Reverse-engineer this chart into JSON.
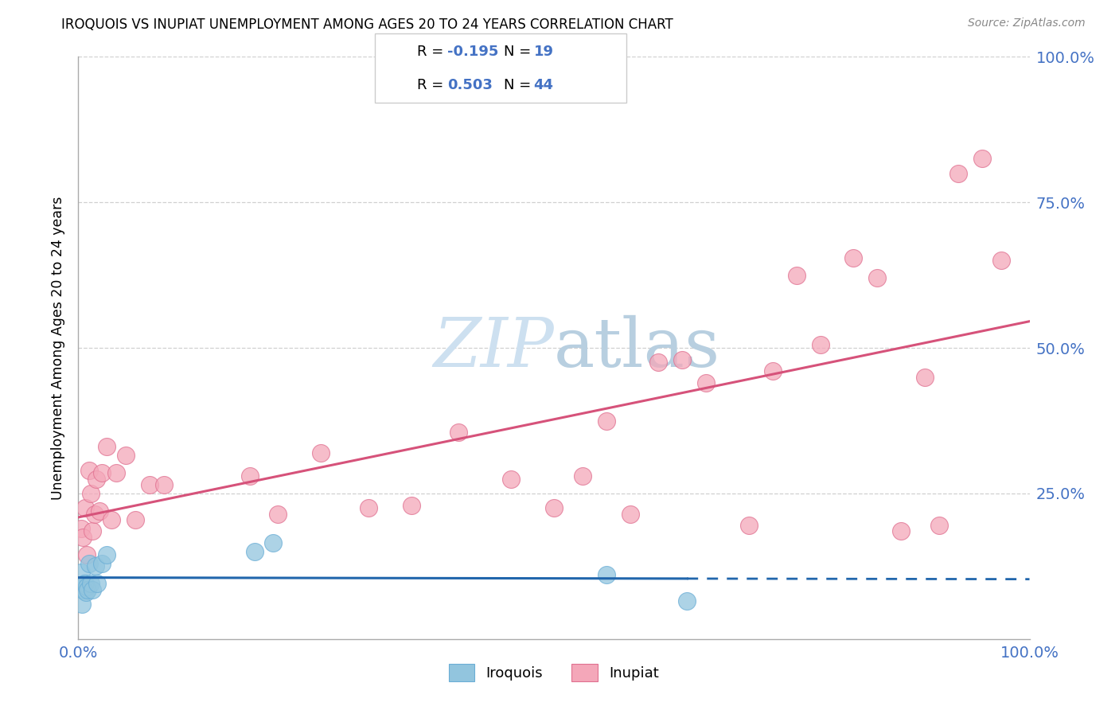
{
  "title": "IROQUOIS VS INUPIAT UNEMPLOYMENT AMONG AGES 20 TO 24 YEARS CORRELATION CHART",
  "source": "Source: ZipAtlas.com",
  "ylabel": "Unemployment Among Ages 20 to 24 years",
  "iroquois_color": "#92c5de",
  "iroquois_edge": "#6baed6",
  "inupiat_color": "#f4a7b9",
  "inupiat_edge": "#e07090",
  "iroquois_line_color": "#2166ac",
  "inupiat_line_color": "#d6527a",
  "iroquois_R": -0.195,
  "iroquois_N": 19,
  "inupiat_R": 0.503,
  "inupiat_N": 44,
  "label_color": "#4472c4",
  "watermark_color": "#cde0f0",
  "iroquois_x": [
    0.003,
    0.004,
    0.005,
    0.006,
    0.007,
    0.008,
    0.009,
    0.01,
    0.011,
    0.013,
    0.015,
    0.018,
    0.02,
    0.025,
    0.03,
    0.185,
    0.205,
    0.555,
    0.64
  ],
  "iroquois_y": [
    0.115,
    0.06,
    0.085,
    0.095,
    0.095,
    0.08,
    0.09,
    0.085,
    0.13,
    0.095,
    0.085,
    0.125,
    0.095,
    0.13,
    0.145,
    0.15,
    0.165,
    0.11,
    0.065
  ],
  "inupiat_x": [
    0.003,
    0.005,
    0.007,
    0.009,
    0.011,
    0.013,
    0.015,
    0.017,
    0.019,
    0.022,
    0.025,
    0.03,
    0.035,
    0.04,
    0.05,
    0.06,
    0.075,
    0.09,
    0.18,
    0.21,
    0.255,
    0.305,
    0.35,
    0.4,
    0.455,
    0.5,
    0.53,
    0.555,
    0.58,
    0.61,
    0.635,
    0.66,
    0.705,
    0.73,
    0.755,
    0.78,
    0.815,
    0.84,
    0.865,
    0.89,
    0.905,
    0.925,
    0.95,
    0.97
  ],
  "inupiat_y": [
    0.19,
    0.175,
    0.225,
    0.145,
    0.29,
    0.25,
    0.185,
    0.215,
    0.275,
    0.22,
    0.285,
    0.33,
    0.205,
    0.285,
    0.315,
    0.205,
    0.265,
    0.265,
    0.28,
    0.215,
    0.32,
    0.225,
    0.23,
    0.355,
    0.275,
    0.225,
    0.28,
    0.375,
    0.215,
    0.475,
    0.48,
    0.44,
    0.195,
    0.46,
    0.625,
    0.505,
    0.655,
    0.62,
    0.185,
    0.45,
    0.195,
    0.8,
    0.825,
    0.65
  ],
  "xlim": [
    0.0,
    1.0
  ],
  "ylim": [
    0.0,
    1.0
  ],
  "y_ticks": [
    0.25,
    0.5,
    0.75,
    1.0
  ],
  "x_ticks": [
    0.0,
    1.0
  ]
}
